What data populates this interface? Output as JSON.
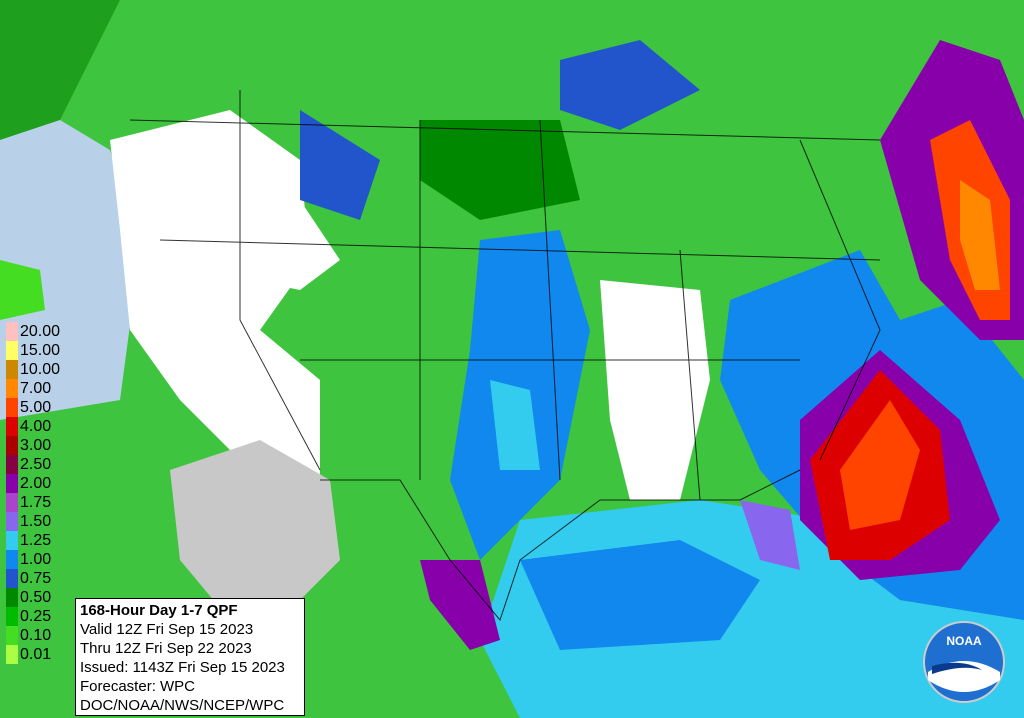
{
  "info": {
    "title": "168-Hour Day 1-7 QPF",
    "lines": [
      "Valid 12Z Fri Sep 15 2023",
      "Thru 12Z Fri Sep 22 2023",
      "Issued: 1143Z Fri Sep 15 2023",
      "Forecaster: WPC",
      "DOC/NOAA/NWS/NCEP/WPC"
    ]
  },
  "legend": [
    {
      "label": "20.00",
      "color": "#ffc0c0"
    },
    {
      "label": "15.00",
      "color": "#ffff66"
    },
    {
      "label": "10.00",
      "color": "#cc8800"
    },
    {
      "label": "7.00",
      "color": "#ff8800"
    },
    {
      "label": "5.00",
      "color": "#ff4400"
    },
    {
      "label": "4.00",
      "color": "#dd0000"
    },
    {
      "label": "3.00",
      "color": "#aa0000"
    },
    {
      "label": "2.50",
      "color": "#880044"
    },
    {
      "label": "2.00",
      "color": "#8800aa"
    },
    {
      "label": "1.75",
      "color": "#aa44cc"
    },
    {
      "label": "1.50",
      "color": "#8866ee"
    },
    {
      "label": "1.25",
      "color": "#33ccee"
    },
    {
      "label": "1.00",
      "color": "#1188ee"
    },
    {
      "label": "0.75",
      "color": "#2255cc"
    },
    {
      "label": "0.50",
      "color": "#008800"
    },
    {
      "label": "0.25",
      "color": "#00bb00"
    },
    {
      "label": "0.10",
      "color": "#44dd22"
    },
    {
      "label": "0.01",
      "color": "#aaff44"
    }
  ],
  "logo": {
    "text": "NOAA"
  }
}
